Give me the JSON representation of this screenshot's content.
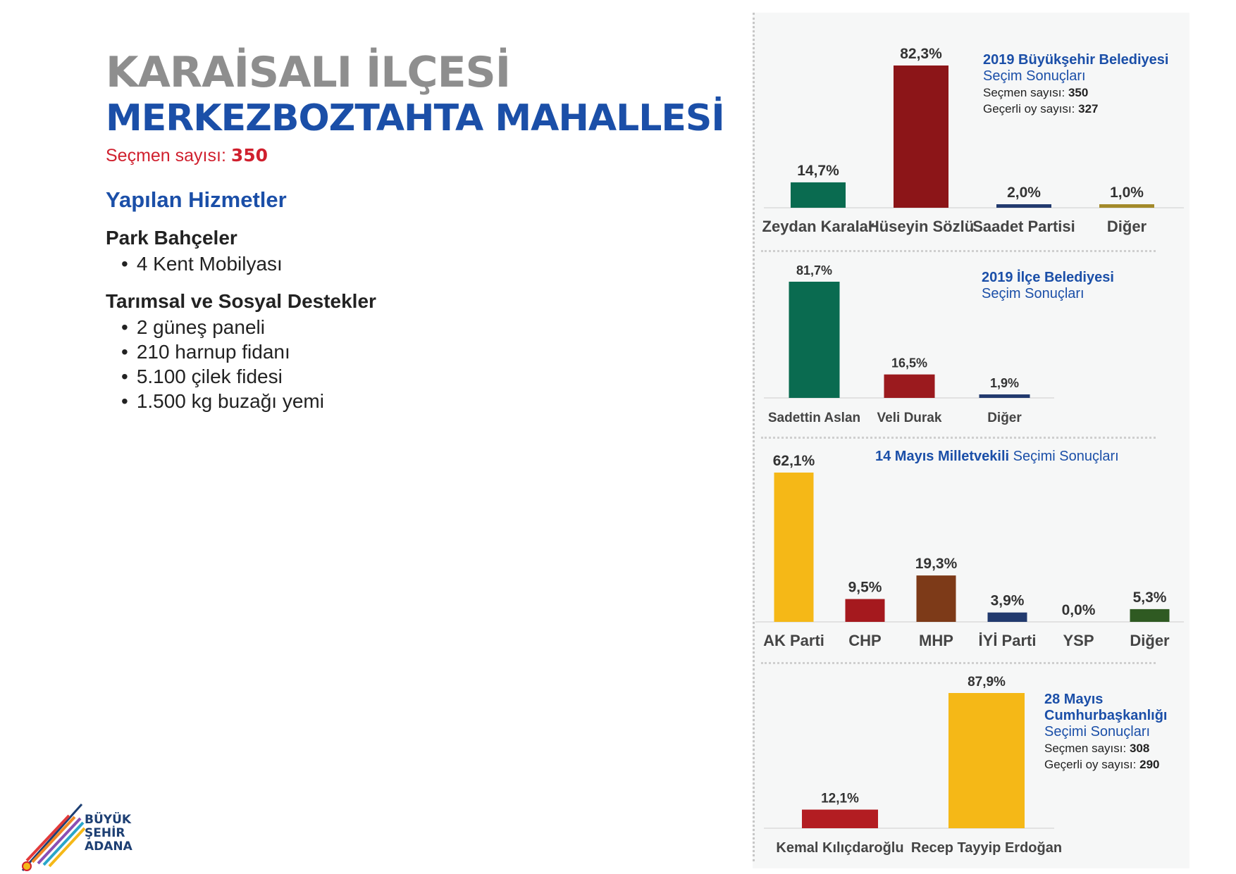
{
  "header": {
    "district": "KARAİSALI İLÇESİ",
    "neighborhood": "MERKEZBOZTAHTA MAHALLESİ",
    "voters_label": "Seçmen sayısı:",
    "voters_value": "350"
  },
  "services": {
    "title": "Yapılan Hizmetler",
    "groups": [
      {
        "title": "Park Bahçeler",
        "items": [
          "4 Kent Mobilyası"
        ]
      },
      {
        "title": "Tarımsal ve Sosyal Destekler",
        "items": [
          "2 güneş paneli",
          "210 harnup fidanı",
          "5.100 çilek fidesi",
          "1.500 kg buzağı yemi"
        ]
      }
    ]
  },
  "logo": {
    "line1": "BÜYÜK",
    "line2": "ŞEHİR",
    "line3": "ADANA"
  },
  "charts_meta": {
    "c1_title_bold": "2019 Büyükşehir Belediyesi",
    "c1_title_sub": "Seçim Sonuçları",
    "c1_voters_label": "Seçmen sayısı:",
    "c1_voters_value": "350",
    "c1_valid_label": "Geçerli oy sayısı:",
    "c1_valid_value": "327",
    "c2_title_bold": "2019 İlçe Belediyesi",
    "c2_title_sub": "Seçim Sonuçları",
    "c3_title_bold": "14 Mayıs Milletvekili",
    "c3_title_sub": "Seçimi Sonuçları",
    "c4_title_bold1": "28 Mayıs",
    "c4_title_bold2": "Cumhurbaşkanlığı",
    "c4_title_sub": "Seçimi Sonuçları",
    "c4_voters_label": "Seçmen sayısı:",
    "c4_voters_value": "308",
    "c4_valid_label": "Geçerli oy sayısı:",
    "c4_valid_value": "290"
  },
  "chart_data": [
    {
      "type": "bar",
      "title": "2019 Büyükşehir Belediyesi Seçim Sonuçları",
      "categories": [
        "Zeydan Karalar",
        "Hüseyin Sözlü",
        "Saadet Partisi",
        "Diğer"
      ],
      "values": [
        14.7,
        82.3,
        2.0,
        1.0
      ],
      "labels": [
        "14,7%",
        "82,3%",
        "2,0%",
        "1,0%"
      ],
      "colors": [
        "#0a6b50",
        "#8c1518",
        "#223a6e",
        "#a38a2a"
      ]
    },
    {
      "type": "bar",
      "title": "2019 İlçe Belediyesi Seçim Sonuçları",
      "categories": [
        "Sadettin Aslan",
        "Veli Durak",
        "Diğer"
      ],
      "values": [
        81.7,
        16.5,
        1.9
      ],
      "labels": [
        "81,7%",
        "16,5%",
        "1,9%"
      ],
      "colors": [
        "#0a6b50",
        "#9b1a1e",
        "#223a6e"
      ]
    },
    {
      "type": "bar",
      "title": "14 Mayıs Milletvekili Seçimi Sonuçları",
      "categories": [
        "AK Parti",
        "CHP",
        "MHP",
        "İYİ Parti",
        "YSP",
        "Diğer"
      ],
      "values": [
        62.1,
        9.5,
        19.3,
        3.9,
        0.0,
        5.3
      ],
      "labels": [
        "62,1%",
        "9,5%",
        "19,3%",
        "3,9%",
        "0,0%",
        "5,3%"
      ],
      "colors": [
        "#f5b817",
        "#a5191e",
        "#7d3a18",
        "#223a6e",
        "#7b2f7e",
        "#2f5a22"
      ]
    },
    {
      "type": "bar",
      "title": "28 Mayıs Cumhurbaşkanlığı Seçimi Sonuçları",
      "categories": [
        "Kemal Kılıçdaroğlu",
        "Recep Tayyip Erdoğan"
      ],
      "values": [
        12.1,
        87.9
      ],
      "labels": [
        "12,1%",
        "87,9%"
      ],
      "colors": [
        "#b31d22",
        "#f5b817"
      ]
    }
  ]
}
